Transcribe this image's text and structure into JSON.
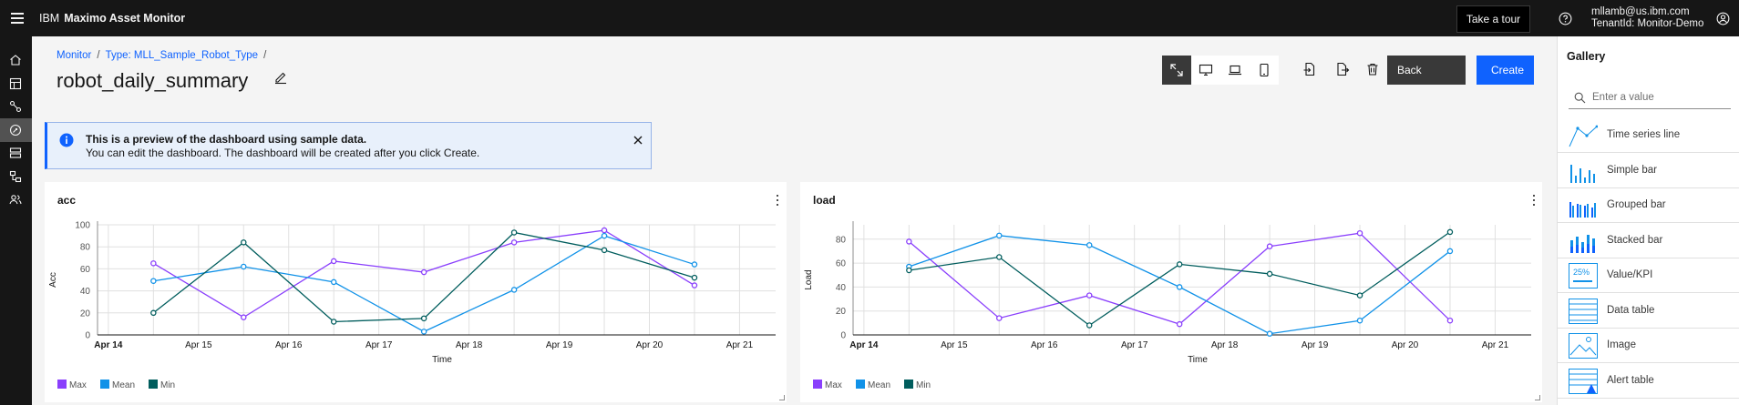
{
  "header": {
    "brand_prefix": "IBM",
    "product_name": "Maximo Asset Monitor",
    "tour_button": "Take a tour",
    "user_email": "mllamb@us.ibm.com",
    "tenant": "TenantId: Monitor-Demo"
  },
  "sidebar": {
    "items": [
      {
        "icon": "home-icon"
      },
      {
        "icon": "dashboard-icon"
      },
      {
        "icon": "connections-icon"
      },
      {
        "icon": "monitor-icon",
        "active": true
      },
      {
        "icon": "devices-icon"
      },
      {
        "icon": "hierarchy-icon"
      },
      {
        "icon": "users-icon"
      }
    ]
  },
  "breadcrumb": {
    "items": [
      "Monitor",
      "Type: MLL_Sample_Robot_Type"
    ],
    "separator": "/"
  },
  "page": {
    "title": "robot_daily_summary"
  },
  "toolbar": {
    "view_buttons": [
      "fit-to-screen-icon",
      "desktop-icon",
      "laptop-icon",
      "tablet-icon"
    ],
    "actions": [
      "import-icon",
      "export-icon",
      "delete-icon"
    ],
    "back_label": "Back",
    "create_label": "Create"
  },
  "notification": {
    "title": "This is a preview of the dashboard using sample data.",
    "subtitle": "You can edit the dashboard. The dashboard will be created after you click Create."
  },
  "colors": {
    "max": "#8a3ffc",
    "mean": "#1192e8",
    "min": "#005d5d",
    "accent": "#0f62fe"
  },
  "chart_data": [
    {
      "type": "line",
      "title": "acc",
      "xlabel": "Time",
      "ylabel": "Acc",
      "x_ticks": [
        "Apr 14",
        "Apr 15",
        "Apr 16",
        "Apr 17",
        "Apr 18",
        "Apr 19",
        "Apr 20",
        "Apr 21"
      ],
      "y_ticks": [
        0,
        20,
        40,
        60,
        80,
        100
      ],
      "ylim": [
        0,
        100
      ],
      "x": [
        "Apr 14 12:00",
        "Apr 15 12:00",
        "Apr 16 12:00",
        "Apr 17 12:00",
        "Apr 18 12:00",
        "Apr 19 12:00",
        "Apr 20 12:00"
      ],
      "grid": true,
      "legend": "bottom-left",
      "series": [
        {
          "name": "Max",
          "values": [
            65,
            16,
            67,
            57,
            84,
            95,
            45
          ]
        },
        {
          "name": "Mean",
          "values": [
            49,
            62,
            48,
            3,
            41,
            90,
            64
          ]
        },
        {
          "name": "Min",
          "values": [
            20,
            84,
            12,
            15,
            93,
            77,
            52
          ]
        }
      ]
    },
    {
      "type": "line",
      "title": "load",
      "xlabel": "Time",
      "ylabel": "Load",
      "x_ticks": [
        "Apr 14",
        "Apr 15",
        "Apr 16",
        "Apr 17",
        "Apr 18",
        "Apr 19",
        "Apr 20",
        "Apr 21"
      ],
      "y_ticks": [
        0,
        20,
        40,
        60,
        80
      ],
      "ylim": [
        0,
        92
      ],
      "x": [
        "Apr 14 12:00",
        "Apr 15 12:00",
        "Apr 16 12:00",
        "Apr 17 12:00",
        "Apr 18 12:00",
        "Apr 19 12:00",
        "Apr 20 12:00"
      ],
      "grid": true,
      "legend": "bottom-left",
      "series": [
        {
          "name": "Max",
          "values": [
            78,
            14,
            33,
            9,
            74,
            85,
            12
          ]
        },
        {
          "name": "Mean",
          "values": [
            57,
            83,
            75,
            40,
            1,
            12,
            70
          ]
        },
        {
          "name": "Min",
          "values": [
            54,
            65,
            8,
            59,
            51,
            33,
            86
          ]
        }
      ]
    }
  ],
  "gallery": {
    "title": "Gallery",
    "search_placeholder": "Enter a value",
    "items": [
      {
        "label": "Time series line",
        "icon": "time-series-line-icon"
      },
      {
        "label": "Simple bar",
        "icon": "simple-bar-icon"
      },
      {
        "label": "Grouped bar",
        "icon": "grouped-bar-icon"
      },
      {
        "label": "Stacked bar",
        "icon": "stacked-bar-icon"
      },
      {
        "label": "Value/KPI",
        "icon": "value-kpi-icon",
        "badge": "25%"
      },
      {
        "label": "Data table",
        "icon": "data-table-icon"
      },
      {
        "label": "Image",
        "icon": "image-icon"
      },
      {
        "label": "Alert table",
        "icon": "alert-table-icon"
      }
    ]
  }
}
